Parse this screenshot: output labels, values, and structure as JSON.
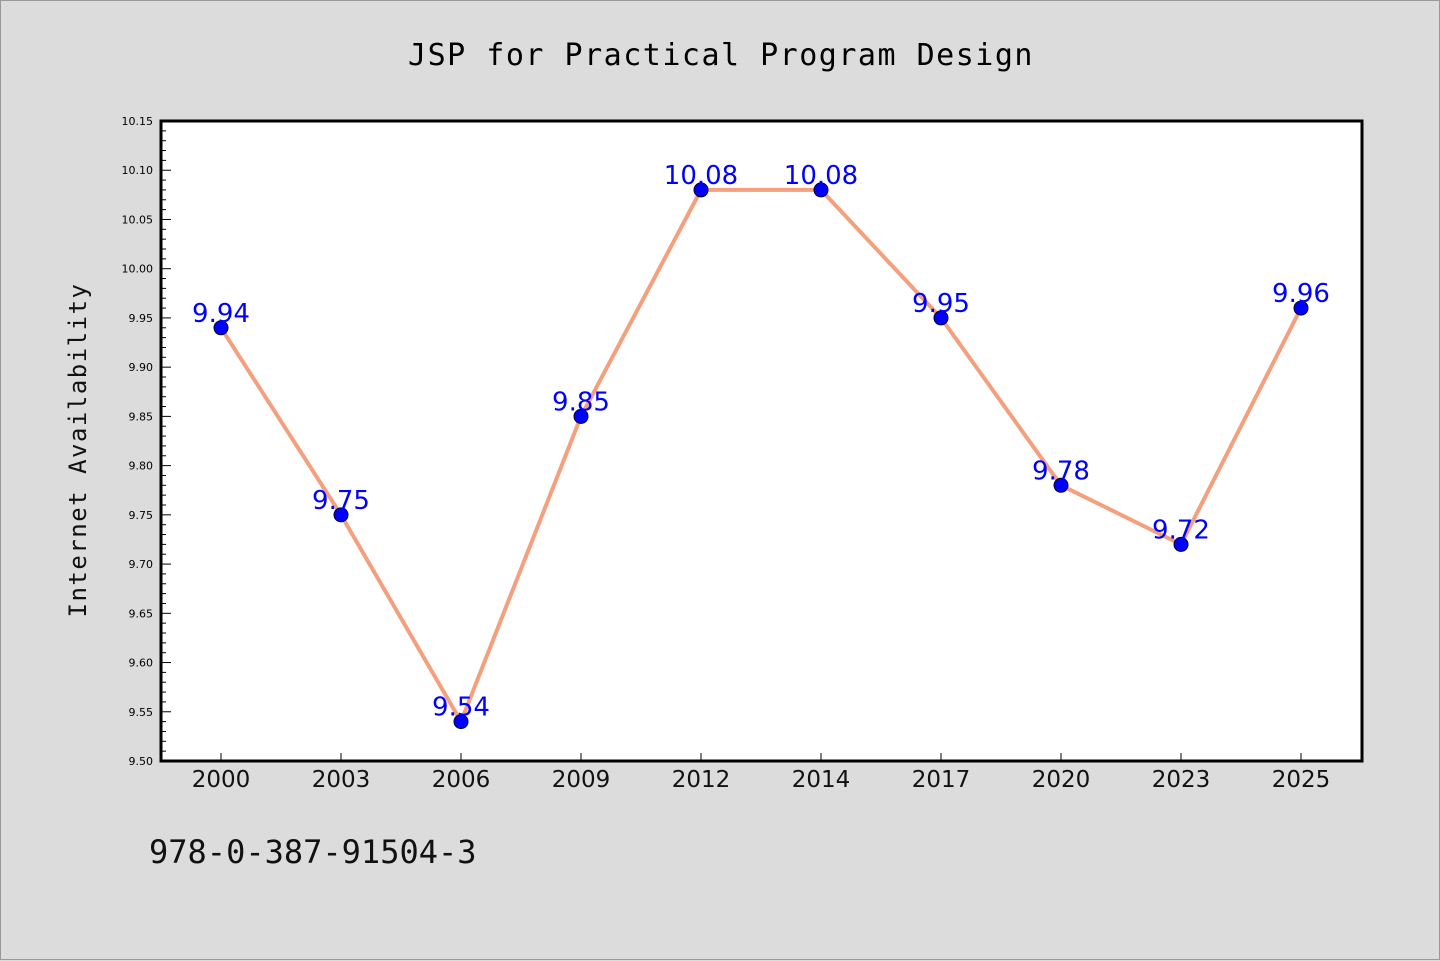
{
  "footer_text": "978-0-387-91504-3",
  "colors": {
    "background": "#dcdcdc",
    "plot_background": "#ffffff",
    "line": "#f4a07e",
    "marker": "#0000ff",
    "label": "#0000ff",
    "axis": "#000000"
  },
  "chart_data": {
    "type": "line",
    "title": "JSP for Practical Program Design",
    "xlabel": "",
    "ylabel": "Internet Availability",
    "categories": [
      "2000",
      "2003",
      "2006",
      "2009",
      "2012",
      "2014",
      "2017",
      "2020",
      "2023",
      "2025"
    ],
    "series": [
      {
        "values": [
          9.94,
          9.75,
          9.54,
          9.85,
          10.08,
          10.08,
          9.95,
          9.78,
          9.72,
          9.96
        ],
        "labels": [
          "9.94",
          "9.75",
          "9.54",
          "9.85",
          "10.08",
          "10.08",
          "9.95",
          "9.78",
          "9.72",
          "9.96"
        ]
      }
    ],
    "ylim": [
      9.5,
      10.15
    ],
    "yticks": [
      "9.50",
      "9.55",
      "9.60",
      "9.65",
      "9.70",
      "9.75",
      "9.80",
      "9.85",
      "9.90",
      "9.95",
      "10.00",
      "10.05",
      "10.10",
      "10.15"
    ],
    "grid": false,
    "legend": "none"
  }
}
